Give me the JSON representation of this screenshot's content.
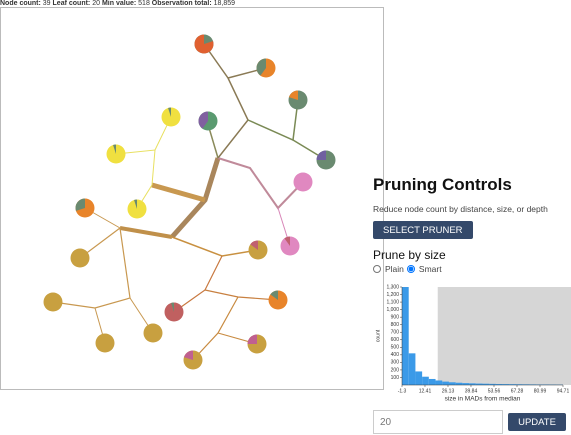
{
  "header": {
    "stats": [
      {
        "label": "Node count:",
        "value": "39"
      },
      {
        "label": "Leaf count:",
        "value": "20"
      },
      {
        "label": "Min value:",
        "value": "518"
      },
      {
        "label": "Observation total:",
        "value": "18,859"
      }
    ]
  },
  "panel": {
    "title": "Pruning Controls",
    "description": "Reduce node count by distance, size, or depth",
    "select_button": "SELECT PRUNER",
    "section_title": "Prune by size",
    "radios": [
      {
        "label": "Plain",
        "checked": false
      },
      {
        "label": "Smart",
        "checked": true
      }
    ],
    "size_input": 20,
    "update_button": "UPDATE"
  },
  "chart_data": {
    "type": "histogram",
    "x_label": "size in MADs from median",
    "y_label": "count",
    "color": "#3b9ae8",
    "bins": [
      -1.3,
      2.7,
      6.7,
      10.7,
      14.7,
      18.7,
      22.7,
      26.7,
      30.7,
      34.7,
      38.7,
      42.7,
      46.7,
      50.7,
      54.7,
      58.7,
      62.7,
      66.7,
      70.7,
      74.7,
      78.7,
      82.7,
      86.7,
      90.7,
      94.7
    ],
    "values": [
      1300,
      420,
      180,
      110,
      80,
      60,
      45,
      36,
      30,
      25,
      22,
      19,
      17,
      15,
      13,
      12,
      11,
      10,
      9,
      8,
      7,
      7,
      6,
      5
    ],
    "xlim": [
      -1.3,
      94.71
    ],
    "xticks": [
      -1.3,
      12.41,
      26.13,
      39.84,
      53.56,
      67.28,
      80.99,
      94.71
    ],
    "ylim": [
      0,
      1300
    ],
    "yticks": [
      100,
      200,
      300,
      400,
      500,
      600,
      700,
      800,
      900,
      {
        "value": 1000,
        "label": "1,000"
      },
      {
        "value": 1100,
        "label": "1,100"
      },
      {
        "value": 1200,
        "label": "1,200"
      },
      {
        "value": 1300,
        "label": "1,300"
      }
    ]
  }
}
